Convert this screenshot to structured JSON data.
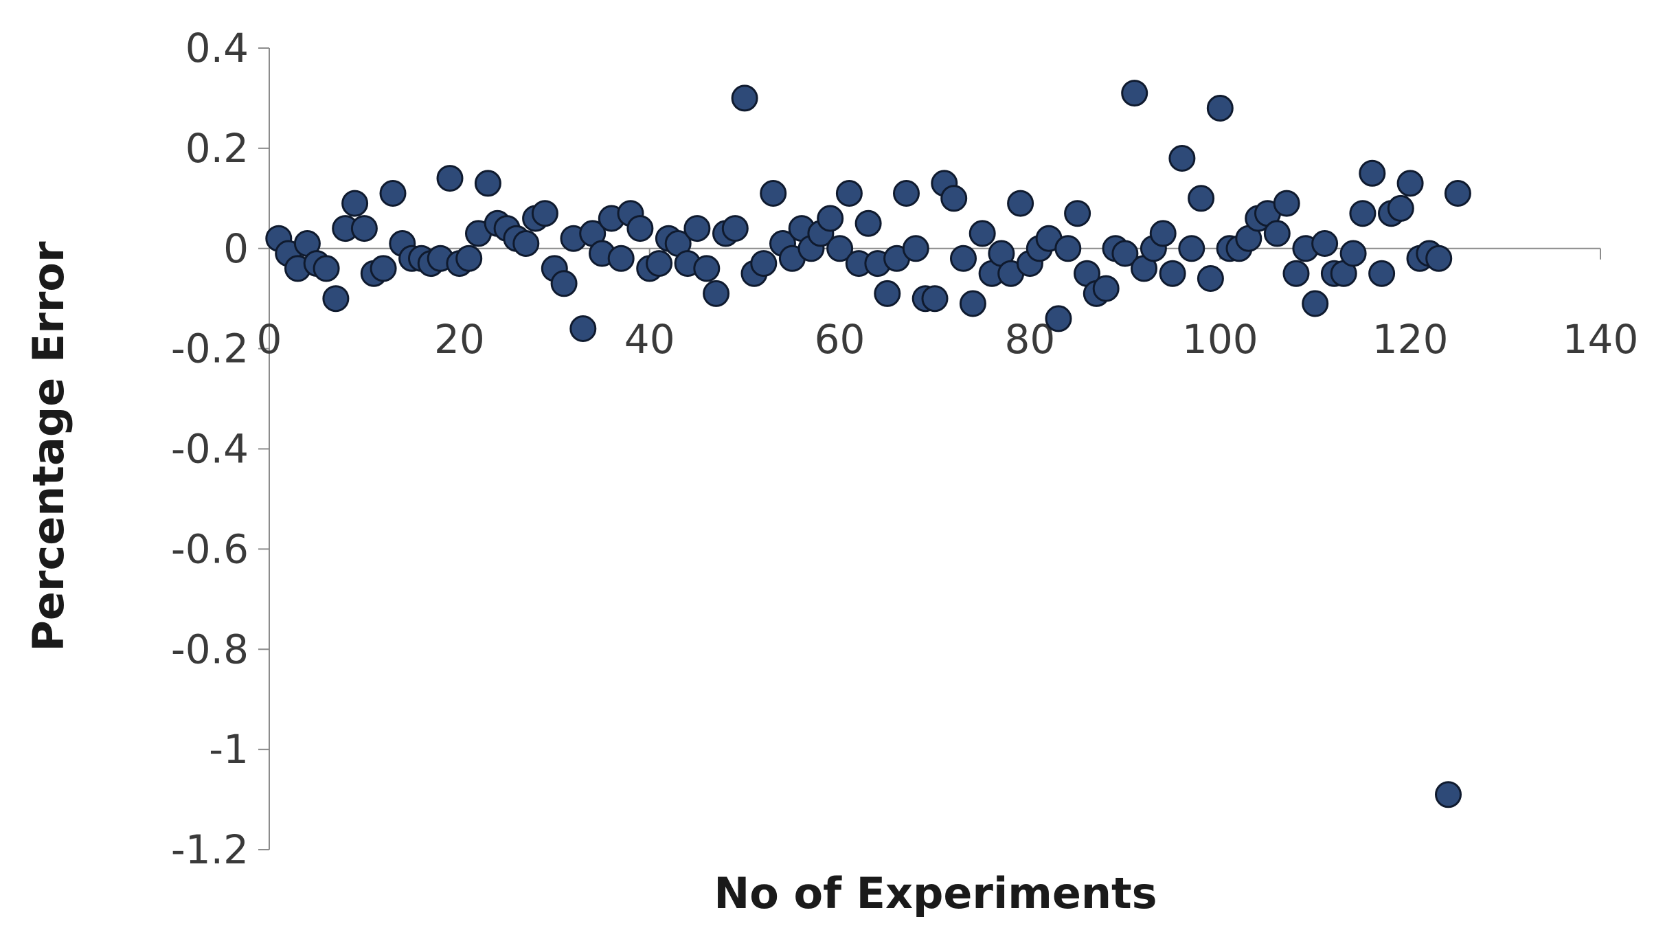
{
  "chart_data": {
    "type": "scatter",
    "title": "",
    "xlabel": "No of Experiments",
    "ylabel": "Percentage Error",
    "xlim": [
      0,
      140
    ],
    "ylim": [
      -1.2,
      0.4
    ],
    "x_ticks": [
      0,
      20,
      40,
      60,
      80,
      100,
      120,
      140
    ],
    "y_ticks": [
      0.4,
      0.2,
      0,
      -0.2,
      -0.4,
      -0.6,
      -0.8,
      -1,
      -1.2
    ],
    "x_tick_labels": [
      "0",
      "20",
      "40",
      "60",
      "80",
      "100",
      "120",
      "140"
    ],
    "y_tick_labels": [
      "0.4",
      "0.2",
      "0",
      "-0.2",
      "-0.4",
      "-0.6",
      "-0.8",
      "-1",
      "-1.2"
    ],
    "grid": false,
    "legend": "none",
    "marker_color": "#2e4a78",
    "marker_edge_color": "#0f1a2e",
    "series": [
      {
        "x": [
          1,
          2,
          3,
          4,
          5,
          6,
          7,
          8,
          9,
          10,
          11,
          12,
          13,
          14,
          15,
          16,
          17,
          18,
          19,
          20,
          21,
          22,
          23,
          24,
          25,
          26,
          27,
          28,
          29,
          30,
          31,
          32,
          33,
          34,
          35,
          36,
          37,
          38,
          39,
          40,
          41,
          42,
          43,
          44,
          45,
          46,
          47,
          48,
          49,
          50,
          51,
          52,
          53,
          54,
          55,
          56,
          57,
          58,
          59,
          60,
          61,
          62,
          63,
          64,
          65,
          66,
          67,
          68,
          69,
          70,
          71,
          72,
          73,
          74,
          75,
          76,
          77,
          78,
          79,
          80,
          81,
          82,
          83,
          84,
          85,
          86,
          87,
          88,
          89,
          90,
          91,
          92,
          93,
          94,
          95,
          96,
          97,
          98,
          99,
          100,
          101,
          102,
          103,
          104,
          105,
          106,
          107,
          108,
          109,
          110,
          111,
          112,
          113,
          114,
          115,
          116,
          117,
          118,
          119,
          120,
          121,
          122,
          123,
          124,
          125
        ],
        "y": [
          0.02,
          -0.01,
          -0.04,
          0.01,
          -0.03,
          -0.04,
          -0.1,
          0.04,
          0.09,
          0.04,
          -0.05,
          -0.04,
          0.11,
          0.01,
          -0.02,
          -0.02,
          -0.03,
          -0.02,
          0.14,
          -0.03,
          -0.02,
          0.03,
          0.13,
          0.05,
          0.04,
          0.02,
          0.01,
          0.06,
          0.07,
          -0.04,
          -0.07,
          0.02,
          -0.16,
          0.03,
          -0.01,
          0.06,
          -0.02,
          0.07,
          0.04,
          -0.04,
          -0.03,
          0.02,
          0.01,
          -0.03,
          0.04,
          -0.04,
          -0.09,
          0.03,
          0.04,
          0.3,
          -0.05,
          -0.03,
          0.11,
          0.01,
          -0.02,
          0.04,
          0.0,
          0.03,
          0.06,
          0.0,
          0.11,
          -0.03,
          0.05,
          -0.03,
          -0.09,
          -0.02,
          0.11,
          0.0,
          -0.1,
          -0.1,
          0.13,
          0.1,
          -0.02,
          -0.11,
          0.03,
          -0.05,
          -0.01,
          -0.05,
          0.09,
          -0.03,
          0.0,
          0.02,
          -0.14,
          0.0,
          0.07,
          -0.05,
          -0.09,
          -0.08,
          0.0,
          -0.01,
          0.31,
          -0.04,
          0.0,
          0.03,
          -0.05,
          0.18,
          0.0,
          0.1,
          -0.06,
          0.28,
          0.0,
          0.0,
          0.02,
          0.06,
          0.07,
          0.03,
          0.09,
          -0.05,
          0.0,
          -0.11,
          0.01,
          -0.05,
          -0.05,
          -0.01,
          0.07,
          0.15,
          -0.05,
          0.07,
          0.08,
          0.13,
          -0.02,
          -0.01,
          -0.02,
          -1.09,
          0.11
        ]
      }
    ]
  }
}
